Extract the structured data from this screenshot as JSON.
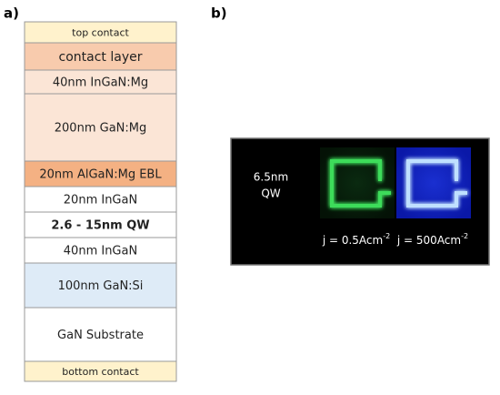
{
  "panel_a": {
    "label": "a)",
    "layers": [
      {
        "text": "top contact",
        "color": "#fff2cc",
        "size": 11,
        "bold": false
      },
      {
        "text": "contact layer",
        "color": "#f8cbad",
        "size": 14,
        "bold": false
      },
      {
        "text": "40nm InGaN:Mg",
        "color": "#fbe5d6",
        "size": 13,
        "bold": false
      },
      {
        "text": "200nm GaN:Mg",
        "color": "#fbe5d6",
        "size": 13,
        "bold": false
      },
      {
        "text": "20nm AlGaN:Mg EBL",
        "color": "#f4b183",
        "size": 13,
        "bold": false
      },
      {
        "text": "20nm InGaN",
        "color": "#ffffff",
        "size": 13,
        "bold": false
      },
      {
        "text": "2.6 - 15nm QW",
        "color": "#ffffff",
        "size": 13,
        "bold": true
      },
      {
        "text": "40nm InGaN",
        "color": "#ffffff",
        "size": 13,
        "bold": false
      },
      {
        "text": "100nm GaN:Si",
        "color": "#deebf7",
        "size": 13,
        "bold": false
      },
      {
        "text": "GaN Substrate",
        "color": "#ffffff",
        "size": 13,
        "bold": false
      },
      {
        "text": "bottom contact",
        "color": "#fff2cc",
        "size": 11,
        "bold": false
      }
    ]
  },
  "panel_b": {
    "label": "b)",
    "qw_line1": "6.5nm",
    "qw_line2": "QW",
    "images": [
      {
        "label": "j = 0.5Acm",
        "sup": "-2",
        "color": "#3ddc5a"
      },
      {
        "label": "j = 500Acm",
        "sup": "-2",
        "color": "#bfe0ff"
      }
    ]
  }
}
